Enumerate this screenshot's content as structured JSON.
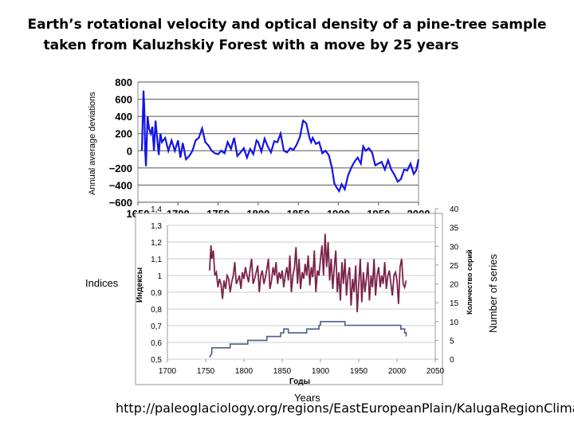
{
  "title_line1": "Earth’s rotational velocity and optical density of a pine-tree sample",
  "title_line2": "taken from Kaluzhskiy Forest with a move by 25 years",
  "left_label": "Indices",
  "right_label": "Number of series",
  "bottom_label": "Years",
  "source_url": "http://paleoglaciology.org/regions/EastEuropeanPlain/KalugaRegionClimate/",
  "colors": {
    "rotation": "#1414e6",
    "density": "#7b2348",
    "series": "#4a5f8a",
    "grid": "#555555"
  },
  "chart_data": [
    {
      "type": "line",
      "ylabel": "Annual average deviations",
      "xlim": [
        1650,
        2000
      ],
      "ylim": [
        -600,
        800
      ],
      "xticks": [
        "1650",
        "1700",
        "1750",
        "1800",
        "1850",
        "1900",
        "1950",
        "2000"
      ],
      "yticks": [
        "800",
        "600",
        "400",
        "200",
        "0",
        "−200",
        "−400",
        "−600"
      ],
      "grid": true,
      "series": [
        {
          "x": [
            1655,
            1657,
            1658,
            1659,
            1660,
            1662,
            1664,
            1666,
            1668,
            1670,
            1672,
            1674,
            1676,
            1678,
            1680,
            1684,
            1688,
            1692,
            1696,
            1700,
            1703,
            1706,
            1710,
            1714,
            1718,
            1722,
            1726,
            1730,
            1734,
            1738,
            1742,
            1746,
            1750,
            1754,
            1758,
            1762,
            1766,
            1770,
            1774,
            1778,
            1782,
            1786,
            1790,
            1794,
            1798,
            1800,
            1804,
            1808,
            1812,
            1816,
            1820,
            1824,
            1828,
            1832,
            1836,
            1840,
            1844,
            1848,
            1852,
            1856,
            1860,
            1864,
            1866,
            1868,
            1872,
            1876,
            1880,
            1884,
            1888,
            1892,
            1895,
            1898,
            1901,
            1904,
            1908,
            1912,
            1916,
            1920,
            1924,
            1928,
            1931,
            1934,
            1938,
            1942,
            1946,
            1950,
            1954,
            1958,
            1962,
            1966,
            1970,
            1974,
            1978,
            1982,
            1986,
            1990,
            1994,
            1997,
            2000
          ],
          "y": [
            0,
            700,
            500,
            0,
            -180,
            400,
            250,
            200,
            280,
            0,
            350,
            150,
            -50,
            200,
            100,
            150,
            0,
            120,
            0,
            120,
            -80,
            90,
            -100,
            -60,
            0,
            120,
            150,
            260,
            100,
            60,
            0,
            -30,
            -40,
            0,
            -30,
            100,
            20,
            150,
            -60,
            -20,
            30,
            -80,
            20,
            -40,
            120,
            100,
            -10,
            140,
            50,
            -20,
            110,
            100,
            200,
            0,
            -20,
            30,
            10,
            70,
            160,
            350,
            320,
            150,
            100,
            150,
            80,
            100,
            -30,
            0,
            -50,
            -200,
            -380,
            -430,
            -470,
            -390,
            -450,
            -290,
            -200,
            -130,
            -80,
            -150,
            50,
            0,
            30,
            -20,
            -170,
            -150,
            -130,
            -220,
            -110,
            -220,
            -280,
            -360,
            -330,
            -220,
            -230,
            -150,
            -270,
            -230,
            -100
          ]
        }
      ]
    },
    {
      "type": "line",
      "xlabel": "Годы",
      "ylabel": "Индексы",
      "y2label": "Количество серий",
      "xlim": [
        1700,
        2050
      ],
      "ylim": [
        0.5,
        1.4
      ],
      "y2lim": [
        0,
        40
      ],
      "xticks": [
        "1700",
        "1750",
        "1800",
        "1850",
        "1900",
        "1950",
        "2000",
        "2050"
      ],
      "yticks": [
        "1,4",
        "1,3",
        "1,2",
        "1,1",
        "1",
        "0,9",
        "0,8",
        "0,7",
        "0,6",
        "0,5"
      ],
      "y2ticks": [
        "40",
        "35",
        "30",
        "25",
        "20",
        "15",
        "10",
        "5",
        "0"
      ],
      "series": [
        {
          "axis": "left",
          "x": [
            1755,
            1757,
            1758,
            1760,
            1762,
            1764,
            1766,
            1768,
            1770,
            1772,
            1774,
            1776,
            1778,
            1780,
            1782,
            1784,
            1786,
            1788,
            1790,
            1792,
            1794,
            1796,
            1798,
            1800,
            1802,
            1804,
            1806,
            1808,
            1810,
            1812,
            1814,
            1816,
            1818,
            1820,
            1822,
            1824,
            1826,
            1828,
            1830,
            1832,
            1834,
            1836,
            1838,
            1840,
            1842,
            1844,
            1846,
            1848,
            1850,
            1852,
            1854,
            1856,
            1858,
            1860,
            1862,
            1864,
            1866,
            1868,
            1870,
            1872,
            1874,
            1876,
            1878,
            1880,
            1882,
            1884,
            1886,
            1888,
            1890,
            1892,
            1894,
            1896,
            1898,
            1900,
            1902,
            1904,
            1906,
            1908,
            1910,
            1912,
            1914,
            1916,
            1918,
            1920,
            1922,
            1924,
            1926,
            1928,
            1930,
            1932,
            1934,
            1936,
            1938,
            1940,
            1942,
            1944,
            1946,
            1948,
            1950,
            1952,
            1954,
            1956,
            1958,
            1960,
            1962,
            1964,
            1966,
            1968,
            1970,
            1972,
            1974,
            1976,
            1978,
            1980,
            1982,
            1984,
            1986,
            1988,
            1990,
            1992,
            1994,
            1996,
            1998,
            2000,
            2002,
            2004,
            2006,
            2008,
            2010,
            2012
          ],
          "y": [
            1.03,
            1.18,
            1.1,
            1.15,
            1.0,
            1.02,
            0.93,
            0.98,
            0.95,
            0.86,
            0.97,
            0.92,
            1.0,
            0.98,
            0.9,
            0.96,
            1.0,
            1.08,
            0.95,
            0.97,
            1.0,
            0.92,
            1.02,
            0.98,
            1.05,
            1.0,
            0.96,
            1.04,
            1.1,
            0.95,
            0.98,
            1.02,
            1.06,
            0.9,
            1.0,
            1.03,
            0.95,
            0.99,
            1.04,
            1.1,
            0.92,
            0.97,
            1.05,
            1.0,
            1.08,
            0.95,
            1.02,
            0.98,
            1.03,
            0.93,
            1.0,
            1.05,
            0.97,
            1.12,
            0.9,
            1.0,
            1.05,
            1.17,
            0.95,
            1.1,
            0.92,
            1.02,
            0.98,
            1.07,
            1.0,
            1.12,
            0.94,
            1.05,
            0.99,
            1.15,
            0.9,
            1.03,
            1.0,
            1.1,
            1.18,
            1.0,
            1.25,
            1.05,
            1.2,
            0.97,
            1.1,
            0.92,
            1.05,
            1.15,
            0.9,
            1.02,
            0.85,
            1.08,
            0.95,
            1.1,
            0.88,
            1.0,
            1.05,
            0.82,
            0.98,
            0.9,
            1.06,
            0.78,
            0.95,
            1.1,
            0.84,
            1.02,
            0.9,
            0.98,
            1.08,
            0.85,
            1.0,
            0.93,
            1.1,
            0.88,
            1.0,
            1.05,
            0.93,
            1.0,
            0.95,
            1.08,
            0.92,
            1.0,
            1.03,
            0.95,
            0.88,
            1.0,
            1.02,
            0.97,
            0.83,
            1.05,
            1.1,
            0.95,
            0.93,
            0.97
          ]
        },
        {
          "axis": "right",
          "x": [
            1755,
            1758,
            1758,
            1782,
            1782,
            1805,
            1805,
            1830,
            1830,
            1848,
            1848,
            1852,
            1852,
            1858,
            1858,
            1882,
            1882,
            1898,
            1898,
            1900,
            1900,
            1932,
            1932,
            1960,
            1960,
            2005,
            2005,
            2010,
            2010,
            2012,
            2012
          ],
          "y": [
            0.5,
            1.5,
            3,
            3,
            4,
            4,
            5,
            5,
            6,
            6,
            7,
            7,
            8,
            8,
            7,
            7,
            8,
            8,
            9,
            9,
            10,
            10,
            9,
            9,
            9,
            9,
            8,
            8,
            7,
            7,
            6
          ]
        }
      ]
    }
  ]
}
